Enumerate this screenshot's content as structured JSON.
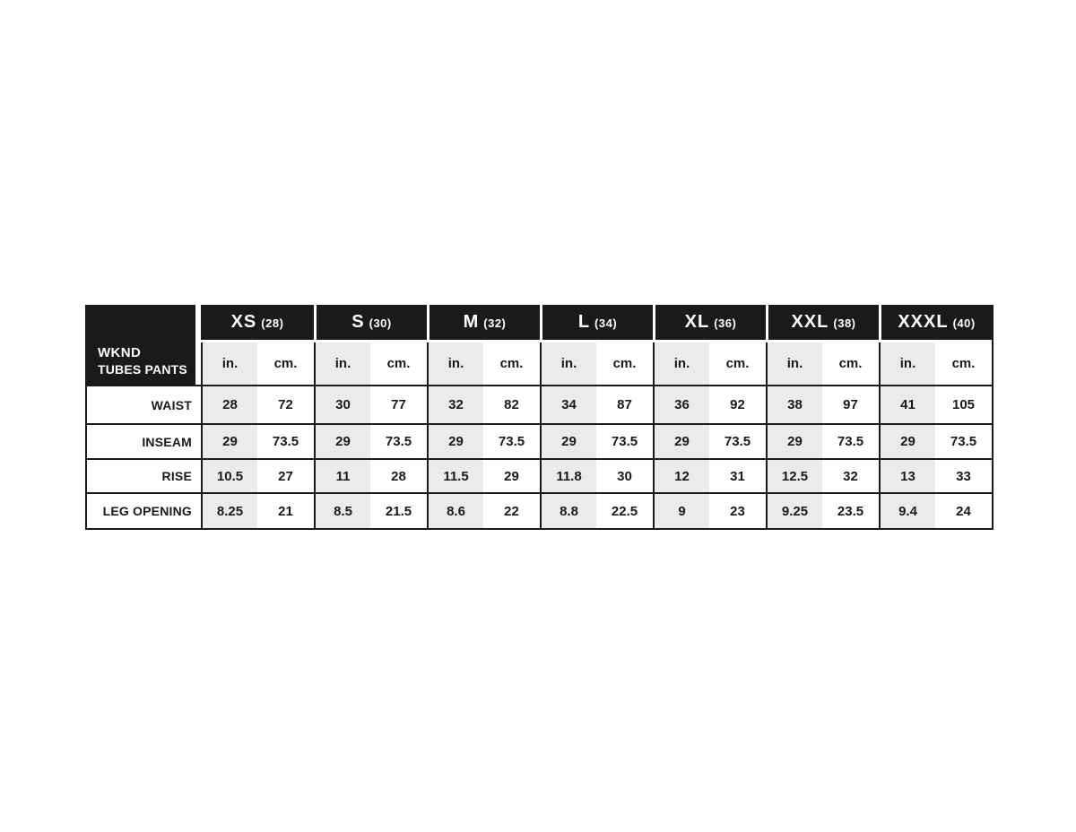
{
  "header": {
    "line1": "WKND",
    "line2": "TUBES PANTS"
  },
  "chart_data": {
    "type": "table",
    "title": "WKND TUBES PANTS size chart",
    "size_columns": [
      {
        "name": "XS",
        "num": "(28)"
      },
      {
        "name": "S",
        "num": "(30)"
      },
      {
        "name": "M",
        "num": "(32)"
      },
      {
        "name": "L",
        "num": "(34)"
      },
      {
        "name": "XL",
        "num": "(36)"
      },
      {
        "name": "XXL",
        "num": "(38)"
      },
      {
        "name": "XXXL",
        "num": "(40)"
      }
    ],
    "units": {
      "in": "in.",
      "cm": "cm."
    },
    "rows": [
      {
        "label": "WAIST",
        "in": [
          "28",
          "30",
          "32",
          "34",
          "36",
          "38",
          "41"
        ],
        "cm": [
          "72",
          "77",
          "82",
          "87",
          "92",
          "97",
          "105"
        ]
      },
      {
        "label": "INSEAM",
        "in": [
          "29",
          "29",
          "29",
          "29",
          "29",
          "29",
          "29"
        ],
        "cm": [
          "73.5",
          "73.5",
          "73.5",
          "73.5",
          "73.5",
          "73.5",
          "73.5"
        ]
      },
      {
        "label": "RISE",
        "in": [
          "10.5",
          "11",
          "11.5",
          "11.8",
          "12",
          "12.5",
          "13"
        ],
        "cm": [
          "27",
          "28",
          "29",
          "30",
          "31",
          "32",
          "33"
        ]
      },
      {
        "label": "LEG OPENING",
        "in": [
          "8.25",
          "8.5",
          "8.6",
          "8.8",
          "9",
          "9.25",
          "9.4"
        ],
        "cm": [
          "21",
          "21.5",
          "22",
          "22.5",
          "23",
          "23.5",
          "24"
        ]
      }
    ]
  },
  "colors": {
    "table_black": "#1a1a1a",
    "shaded_in_column": "#ebebe9",
    "cm_column": "#ffffff",
    "header_text": "#ffffff",
    "body_text": "#1a1a1a"
  }
}
